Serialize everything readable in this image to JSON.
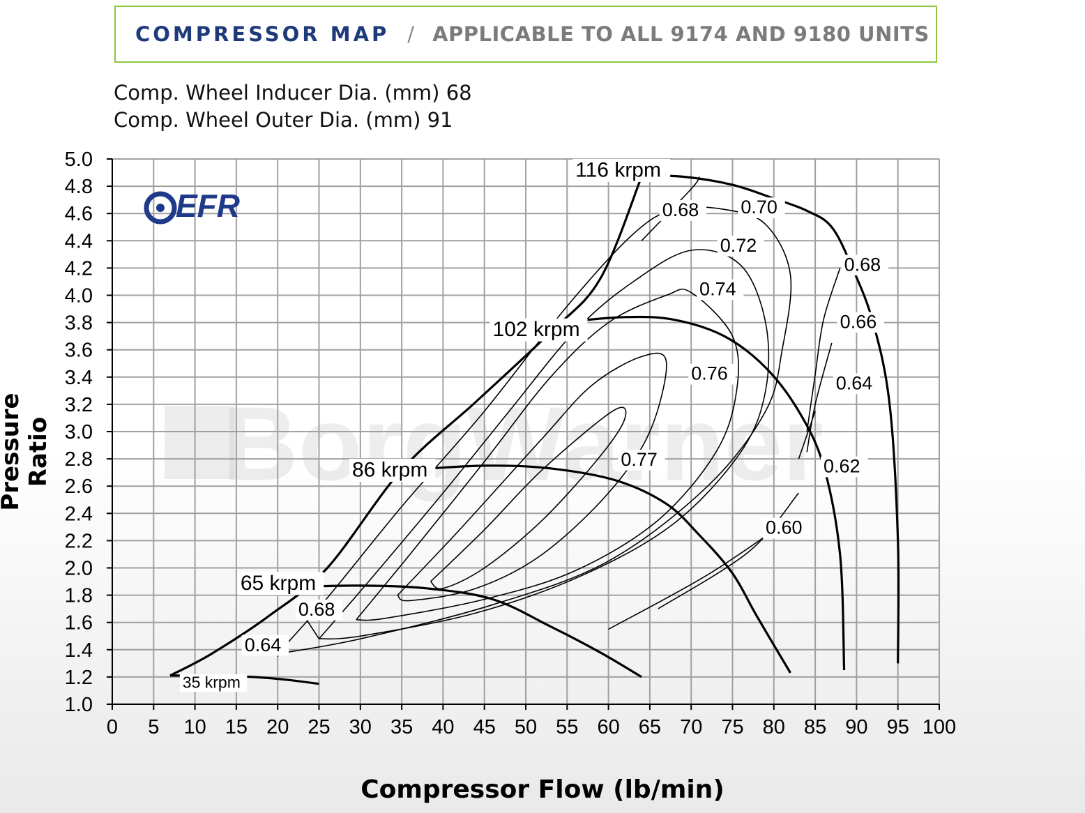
{
  "header": {
    "title": "COMPRESSOR MAP",
    "separator": "/",
    "subtitle": "APPLICABLE TO ALL  9174 AND 9180 UNITS"
  },
  "specs": {
    "inducer": "Comp. Wheel Inducer Dia. (mm) 68",
    "outer": "Comp. Wheel Outer Dia. (mm) 91"
  },
  "logo_text": "EFR",
  "watermark_text": "BorgWarner",
  "colors": {
    "accent_border": "#8cc63f",
    "title_blue": "#1f3a7a",
    "subtitle_gray": "#7b7b7b",
    "logo_blue": "#1f3a8a"
  },
  "chart_data": {
    "type": "contour",
    "xlabel": "Compressor Flow (lb/min)",
    "ylabel": "Pressure Ratio",
    "xlim": [
      0,
      100
    ],
    "ylim": [
      1.0,
      5.0
    ],
    "x_ticks": [
      0,
      5,
      10,
      15,
      20,
      25,
      30,
      35,
      40,
      45,
      50,
      55,
      60,
      65,
      70,
      75,
      80,
      85,
      90,
      95,
      100
    ],
    "y_ticks": [
      1.0,
      1.2,
      1.4,
      1.6,
      1.8,
      2.0,
      2.2,
      2.4,
      2.6,
      2.8,
      3.0,
      3.2,
      3.4,
      3.6,
      3.8,
      4.0,
      4.2,
      4.4,
      4.6,
      4.8,
      5.0
    ],
    "grid": true,
    "surge_line": [
      [
        7,
        1.21
      ],
      [
        12,
        1.37
      ],
      [
        19,
        1.65
      ],
      [
        26,
        2.0
      ],
      [
        35,
        2.72
      ],
      [
        44,
        3.22
      ],
      [
        53,
        3.73
      ],
      [
        59,
        4.12
      ],
      [
        64,
        4.87
      ]
    ],
    "speed_lines": [
      {
        "label": "35 krpm",
        "points": [
          [
            7,
            1.21
          ],
          [
            12,
            1.21
          ],
          [
            17,
            1.2
          ],
          [
            21,
            1.18
          ],
          [
            25,
            1.15
          ]
        ]
      },
      {
        "label": "65 krpm",
        "points": [
          [
            22,
            1.86
          ],
          [
            30,
            1.87
          ],
          [
            38,
            1.85
          ],
          [
            46,
            1.77
          ],
          [
            53,
            1.57
          ],
          [
            59,
            1.38
          ],
          [
            64,
            1.2
          ]
        ]
      },
      {
        "label": "86 krpm",
        "points": [
          [
            36,
            2.72
          ],
          [
            45,
            2.75
          ],
          [
            53,
            2.73
          ],
          [
            61,
            2.64
          ],
          [
            67,
            2.47
          ],
          [
            71,
            2.24
          ],
          [
            75,
            1.96
          ],
          [
            78,
            1.64
          ],
          [
            82,
            1.23
          ]
        ]
      },
      {
        "label": "102 krpm",
        "points": [
          [
            54,
            3.8
          ],
          [
            62,
            3.84
          ],
          [
            68,
            3.82
          ],
          [
            74,
            3.7
          ],
          [
            79,
            3.47
          ],
          [
            83,
            3.15
          ],
          [
            86,
            2.75
          ],
          [
            88,
            2.1
          ],
          [
            88.5,
            1.25
          ]
        ]
      },
      {
        "label": "116 krpm",
        "points": [
          [
            63,
            4.88
          ],
          [
            69,
            4.87
          ],
          [
            75,
            4.81
          ],
          [
            80,
            4.71
          ],
          [
            84,
            4.62
          ],
          [
            87,
            4.5
          ],
          [
            89.5,
            4.2
          ],
          [
            92,
            3.8
          ],
          [
            94,
            3.2
          ],
          [
            95,
            2.2
          ],
          [
            95,
            1.3
          ]
        ]
      }
    ],
    "efficiency_islands": [
      {
        "label": "0.77",
        "points": [
          [
            38.5,
            1.9
          ],
          [
            45,
            2.28
          ],
          [
            52,
            2.72
          ],
          [
            60.5,
            3.15
          ],
          [
            62,
            3.1
          ],
          [
            59,
            2.82
          ],
          [
            52,
            2.35
          ],
          [
            45,
            2.0
          ],
          [
            40,
            1.85
          ],
          [
            38.5,
            1.9
          ]
        ]
      },
      {
        "label": "0.76",
        "points": [
          [
            34.5,
            1.8
          ],
          [
            42,
            2.28
          ],
          [
            52,
            2.95
          ],
          [
            58,
            3.34
          ],
          [
            64,
            3.55
          ],
          [
            67,
            3.51
          ],
          [
            65,
            3.0
          ],
          [
            60,
            2.55
          ],
          [
            52,
            2.1
          ],
          [
            44,
            1.85
          ],
          [
            36,
            1.76
          ],
          [
            34.5,
            1.8
          ]
        ]
      },
      {
        "label": "0.74",
        "points": [
          [
            29.5,
            1.62
          ],
          [
            36,
            2.1
          ],
          [
            45,
            2.78
          ],
          [
            53,
            3.4
          ],
          [
            60,
            3.8
          ],
          [
            67,
            4.0
          ],
          [
            70,
            4.02
          ],
          [
            75,
            3.7
          ],
          [
            75.5,
            3.3
          ],
          [
            73,
            2.85
          ],
          [
            66,
            2.35
          ],
          [
            56,
            1.98
          ],
          [
            45,
            1.77
          ],
          [
            33,
            1.63
          ],
          [
            29.5,
            1.62
          ]
        ]
      },
      {
        "label": "0.72",
        "points": [
          [
            25,
            1.48
          ],
          [
            31,
            1.9
          ],
          [
            40,
            2.55
          ],
          [
            48,
            3.15
          ],
          [
            56,
            3.74
          ],
          [
            63,
            4.1
          ],
          [
            70,
            4.33
          ],
          [
            76,
            4.22
          ],
          [
            79,
            3.8
          ],
          [
            79,
            3.3
          ],
          [
            76,
            2.85
          ],
          [
            68,
            2.33
          ],
          [
            57,
            1.95
          ],
          [
            44,
            1.67
          ],
          [
            30,
            1.5
          ],
          [
            25,
            1.48
          ]
        ]
      },
      {
        "label": "0.70",
        "points": [
          [
            20,
            1.37
          ],
          [
            26,
            1.78
          ],
          [
            35,
            2.45
          ],
          [
            45,
            3.15
          ],
          [
            55,
            3.92
          ],
          [
            63,
            4.45
          ],
          [
            68,
            4.63
          ],
          [
            74,
            4.63
          ],
          [
            79,
            4.52
          ],
          [
            82,
            4.15
          ],
          [
            81,
            3.6
          ],
          [
            79,
            3.15
          ],
          [
            72,
            2.6
          ],
          [
            60,
            2.05
          ],
          [
            46,
            1.73
          ],
          [
            30,
            1.48
          ],
          [
            20,
            1.37
          ]
        ]
      },
      {
        "label": "0.68",
        "points": [
          [
            64,
            4.4
          ],
          [
            70,
            4.78
          ],
          [
            71,
            4.87
          ]
        ]
      },
      {
        "label": "0.68",
        "points": [
          [
            88,
            4.2
          ],
          [
            86,
            3.82
          ],
          [
            85,
            3.42
          ],
          [
            84,
            3.0
          ]
        ]
      },
      {
        "label": "0.66",
        "points": [
          [
            87,
            3.65
          ],
          [
            85,
            3.2
          ],
          [
            84,
            2.85
          ]
        ]
      },
      {
        "label": "0.64",
        "points": [
          [
            85,
            3.15
          ],
          [
            83,
            2.8
          ]
        ]
      },
      {
        "label": "0.62",
        "points": [
          [
            83,
            2.55
          ],
          [
            77,
            2.12
          ],
          [
            66,
            1.7
          ]
        ]
      },
      {
        "label": "0.60",
        "points": [
          [
            82,
            2.36
          ],
          [
            72,
            1.95
          ],
          [
            60,
            1.55
          ]
        ]
      },
      {
        "label": "0.68",
        "points": [
          [
            23.5,
            1.62
          ],
          [
            25,
            1.48
          ]
        ]
      },
      {
        "label": "0.64",
        "points": [
          [
            20,
            1.35
          ],
          [
            21,
            1.46
          ]
        ]
      }
    ],
    "labels": [
      {
        "text": "116 krpm",
        "x": 56,
        "y": 4.87
      },
      {
        "text": "102 krpm",
        "x": 46,
        "y": 3.7
      },
      {
        "text": "86 krpm",
        "x": 29,
        "y": 2.67
      },
      {
        "text": "65 krpm",
        "x": 15.5,
        "y": 1.84
      },
      {
        "text": "35 krpm",
        "x": 8.5,
        "y": 1.12
      },
      {
        "text": "0.68",
        "x": 66.5,
        "y": 4.58
      },
      {
        "text": "0.70",
        "x": 76,
        "y": 4.6
      },
      {
        "text": "0.72",
        "x": 73.5,
        "y": 4.32
      },
      {
        "text": "0.74",
        "x": 71,
        "y": 4.0
      },
      {
        "text": "0.76",
        "x": 70,
        "y": 3.38
      },
      {
        "text": "0.77",
        "x": 61.5,
        "y": 2.75
      },
      {
        "text": "0.68",
        "x": 88.5,
        "y": 4.18
      },
      {
        "text": "0.66",
        "x": 88,
        "y": 3.76
      },
      {
        "text": "0.64",
        "x": 87.5,
        "y": 3.31
      },
      {
        "text": "0.62",
        "x": 86,
        "y": 2.7
      },
      {
        "text": "0.60",
        "x": 79,
        "y": 2.25
      },
      {
        "text": "0.68",
        "x": 22.5,
        "y": 1.65
      },
      {
        "text": "0.64",
        "x": 16,
        "y": 1.39
      }
    ]
  }
}
